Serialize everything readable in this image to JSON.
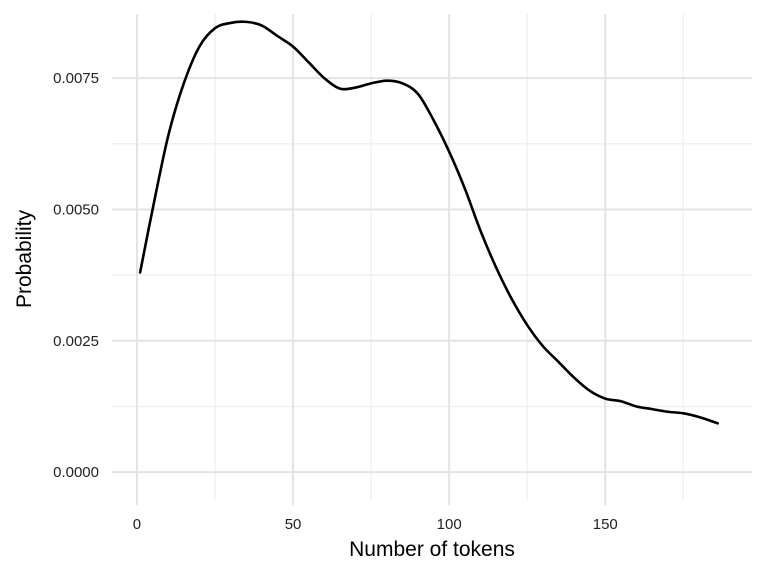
{
  "chart_data": {
    "type": "line",
    "title": "",
    "xlabel": "Number of tokens",
    "ylabel": "Probability",
    "xlim": [
      -8,
      197
    ],
    "ylim": [
      -0.00053,
      0.00872
    ],
    "x_ticks": [
      0,
      50,
      100,
      150
    ],
    "x_tick_labels": [
      "0",
      "50",
      "100",
      "150"
    ],
    "y_ticks": [
      0.0,
      0.0025,
      0.005,
      0.0075
    ],
    "y_tick_labels": [
      "0.0000",
      "0.0025",
      "0.0050",
      "0.0075"
    ],
    "grid": true,
    "legend": "none",
    "line_color": "#000000",
    "series": [
      {
        "x": [
          1,
          5,
          10,
          15,
          20,
          25,
          30,
          35,
          40,
          45,
          50,
          55,
          60,
          65,
          70,
          75,
          80,
          85,
          90,
          95,
          100,
          105,
          110,
          115,
          120,
          125,
          130,
          135,
          140,
          145,
          150,
          155,
          160,
          165,
          170,
          175,
          180,
          186
        ],
        "y": [
          0.0038,
          0.005,
          0.0064,
          0.0074,
          0.0081,
          0.00845,
          0.00855,
          0.00857,
          0.0085,
          0.0083,
          0.0081,
          0.0078,
          0.0075,
          0.0073,
          0.00732,
          0.0074,
          0.00745,
          0.0074,
          0.0072,
          0.0067,
          0.0061,
          0.0054,
          0.0046,
          0.0039,
          0.0033,
          0.0028,
          0.0024,
          0.0021,
          0.0018,
          0.00155,
          0.0014,
          0.00135,
          0.00125,
          0.0012,
          0.00115,
          0.00112,
          0.00105,
          0.00093
        ]
      }
    ]
  }
}
